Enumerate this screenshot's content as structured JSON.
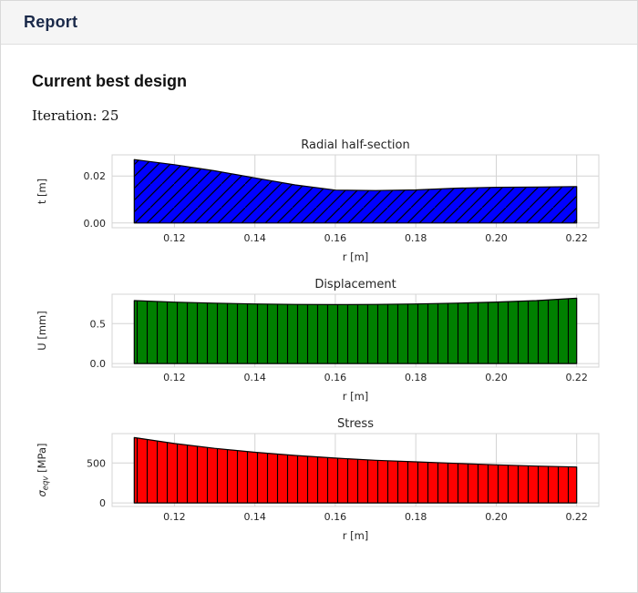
{
  "header": {
    "title": "Report"
  },
  "section": {
    "title": "Current best design",
    "iteration_label": "Iteration:",
    "iteration_value": "25",
    "iteration_text": "Iteration: 25"
  },
  "colors": {
    "header_title": "#1b2a4a",
    "grid": "#d4d4d4",
    "radial_fill": "#0000ff",
    "displacement_fill": "#008000",
    "stress_fill": "#ff0000"
  },
  "chart_data": [
    {
      "type": "area",
      "title": "Radial half-section",
      "xlabel": "r [m]",
      "ylabel": "t [m]",
      "color": "#0000ff",
      "hatch": "/",
      "x": [
        0.11,
        0.12,
        0.13,
        0.14,
        0.15,
        0.16,
        0.17,
        0.18,
        0.19,
        0.2,
        0.21,
        0.22
      ],
      "values": [
        0.027,
        0.0248,
        0.0222,
        0.0192,
        0.0162,
        0.014,
        0.0138,
        0.0141,
        0.0148,
        0.0152,
        0.0153,
        0.0155
      ],
      "xlim": [
        0.1045,
        0.2255
      ],
      "ylim": [
        -0.002,
        0.029
      ],
      "xticks": [
        0.12,
        0.14,
        0.16,
        0.18,
        0.2,
        0.22
      ],
      "xtick_labels": [
        "0.12",
        "0.14",
        "0.16",
        "0.18",
        "0.20",
        "0.22"
      ],
      "yticks": [
        0.0,
        0.02
      ],
      "ytick_labels": [
        "0.00",
        "0.02"
      ],
      "grid": true,
      "legend": "none"
    },
    {
      "type": "area",
      "title": "Displacement",
      "xlabel": "r [m]",
      "ylabel": "U [mm]",
      "color": "#008000",
      "hatch": "|",
      "x": [
        0.11,
        0.12,
        0.13,
        0.14,
        0.15,
        0.16,
        0.17,
        0.18,
        0.19,
        0.2,
        0.21,
        0.22
      ],
      "values": [
        0.79,
        0.77,
        0.758,
        0.748,
        0.742,
        0.74,
        0.742,
        0.748,
        0.758,
        0.772,
        0.79,
        0.82
      ],
      "xlim": [
        0.1045,
        0.2255
      ],
      "ylim": [
        -0.045,
        0.87
      ],
      "xticks": [
        0.12,
        0.14,
        0.16,
        0.18,
        0.2,
        0.22
      ],
      "xtick_labels": [
        "0.12",
        "0.14",
        "0.16",
        "0.18",
        "0.20",
        "0.22"
      ],
      "yticks": [
        0.0,
        0.5
      ],
      "ytick_labels": [
        "0.0",
        "0.5"
      ],
      "grid": true,
      "legend": "none"
    },
    {
      "type": "area",
      "title": "Stress",
      "xlabel": "r [m]",
      "ylabel": "σ_eqv [MPa]",
      "color": "#ff0000",
      "hatch": "|",
      "x": [
        0.11,
        0.12,
        0.13,
        0.14,
        0.15,
        0.16,
        0.17,
        0.18,
        0.19,
        0.2,
        0.21,
        0.22
      ],
      "values": [
        820,
        745,
        685,
        635,
        595,
        562,
        535,
        515,
        496,
        478,
        462,
        450
      ],
      "xlim": [
        0.1045,
        0.2255
      ],
      "ylim": [
        -45,
        870
      ],
      "xticks": [
        0.12,
        0.14,
        0.16,
        0.18,
        0.2,
        0.22
      ],
      "xtick_labels": [
        "0.12",
        "0.14",
        "0.16",
        "0.18",
        "0.20",
        "0.22"
      ],
      "yticks": [
        0,
        500
      ],
      "ytick_labels": [
        "0",
        "500"
      ],
      "grid": true,
      "legend": "none"
    }
  ]
}
